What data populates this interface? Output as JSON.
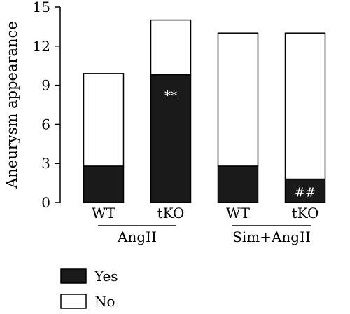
{
  "chart_data": {
    "type": "bar",
    "stacked": true,
    "ylabel": "Aneurysm appearance",
    "ylim": [
      0,
      15
    ],
    "yticks": [
      0,
      3,
      6,
      9,
      12,
      15
    ],
    "categories": [
      "WT",
      "tKO",
      "WT",
      "tKO"
    ],
    "groups": [
      {
        "label": "AngII",
        "categories": [
          0,
          1
        ]
      },
      {
        "label": "Sim+AngII",
        "categories": [
          2,
          3
        ]
      }
    ],
    "series": [
      {
        "name": "Yes",
        "values": [
          2.8,
          9.8,
          2.8,
          1.8
        ],
        "color": "#1a1a1a"
      },
      {
        "name": "No",
        "values": [
          7.1,
          4.2,
          10.2,
          11.2
        ],
        "color": "#ffffff"
      }
    ],
    "annotations": [
      {
        "category": 1,
        "text": "**"
      },
      {
        "category": 3,
        "text": "##"
      }
    ],
    "legend_position": "bottom-left",
    "grid": false
  }
}
